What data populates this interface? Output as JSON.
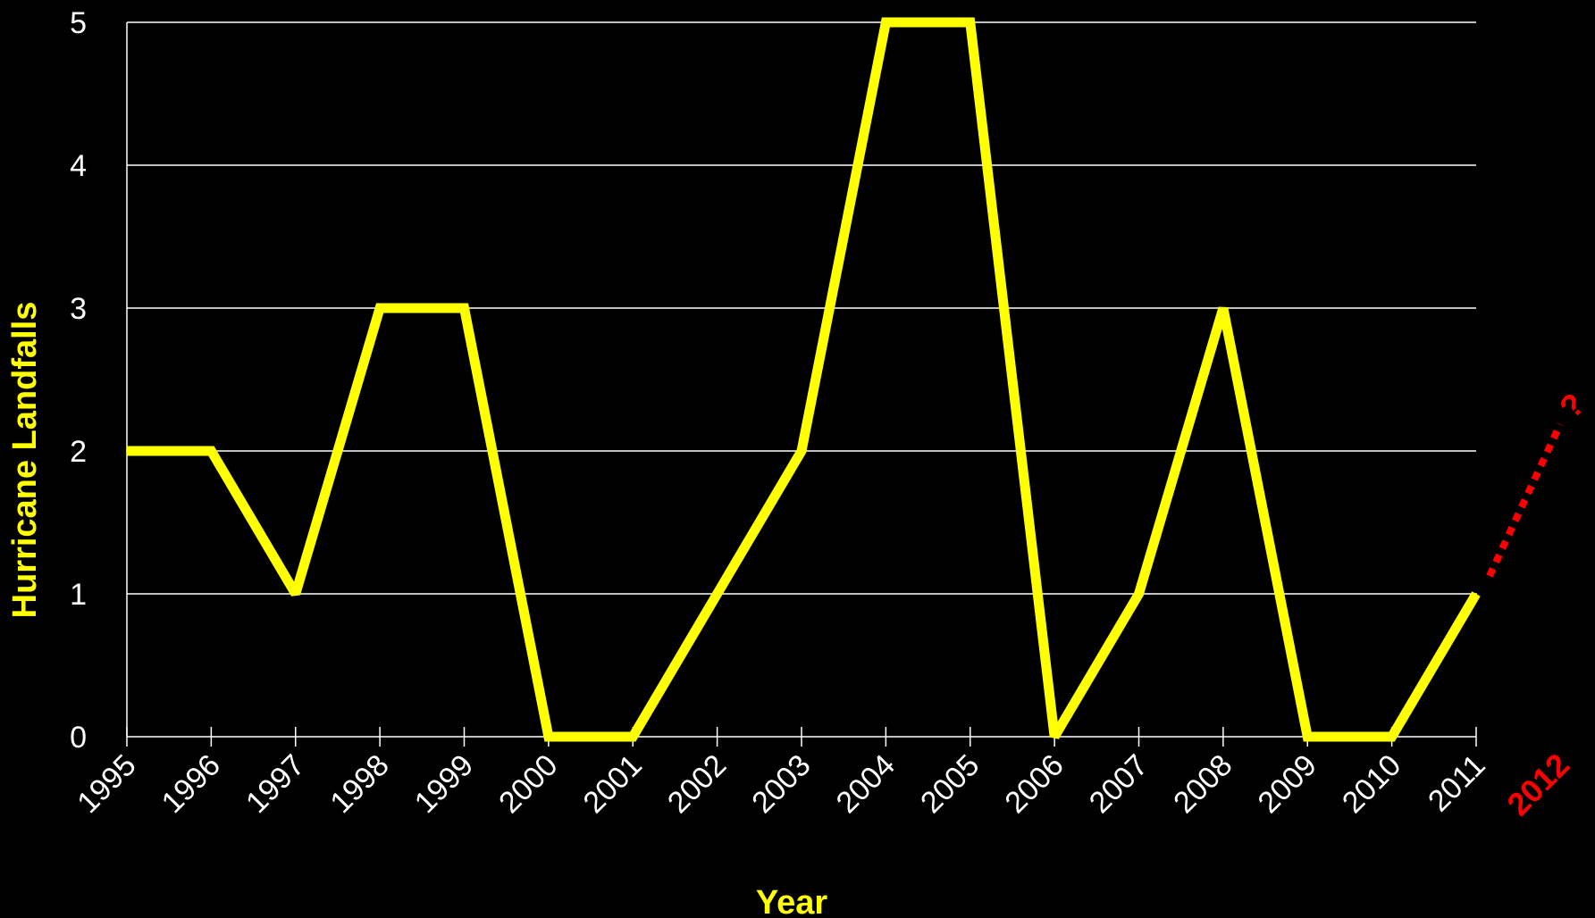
{
  "chart_data": {
    "type": "line",
    "xlabel": "Year",
    "ylabel": "Hurricane  Landfalls",
    "ylim": [
      0,
      5
    ],
    "yticks": [
      0,
      1,
      2,
      3,
      4,
      5
    ],
    "grid": true,
    "categories": [
      "1995",
      "1996",
      "1997",
      "1998",
      "1999",
      "2000",
      "2001",
      "2002",
      "2003",
      "2004",
      "2005",
      "2006",
      "2007",
      "2008",
      "2009",
      "2010",
      "2011"
    ],
    "series": [
      {
        "values": [
          2,
          2,
          1,
          3,
          3,
          0,
          0,
          1,
          2,
          5,
          5,
          0,
          1,
          3,
          0,
          0,
          1
        ],
        "color": "#ffff00"
      }
    ],
    "forecast": {
      "category": "2012",
      "marker": "?",
      "color": "#ff0000"
    },
    "colors": {
      "background": "#000000",
      "grid": "#ffffff",
      "tick_text": "#ffffff",
      "axis_title": "#ffff00"
    }
  }
}
